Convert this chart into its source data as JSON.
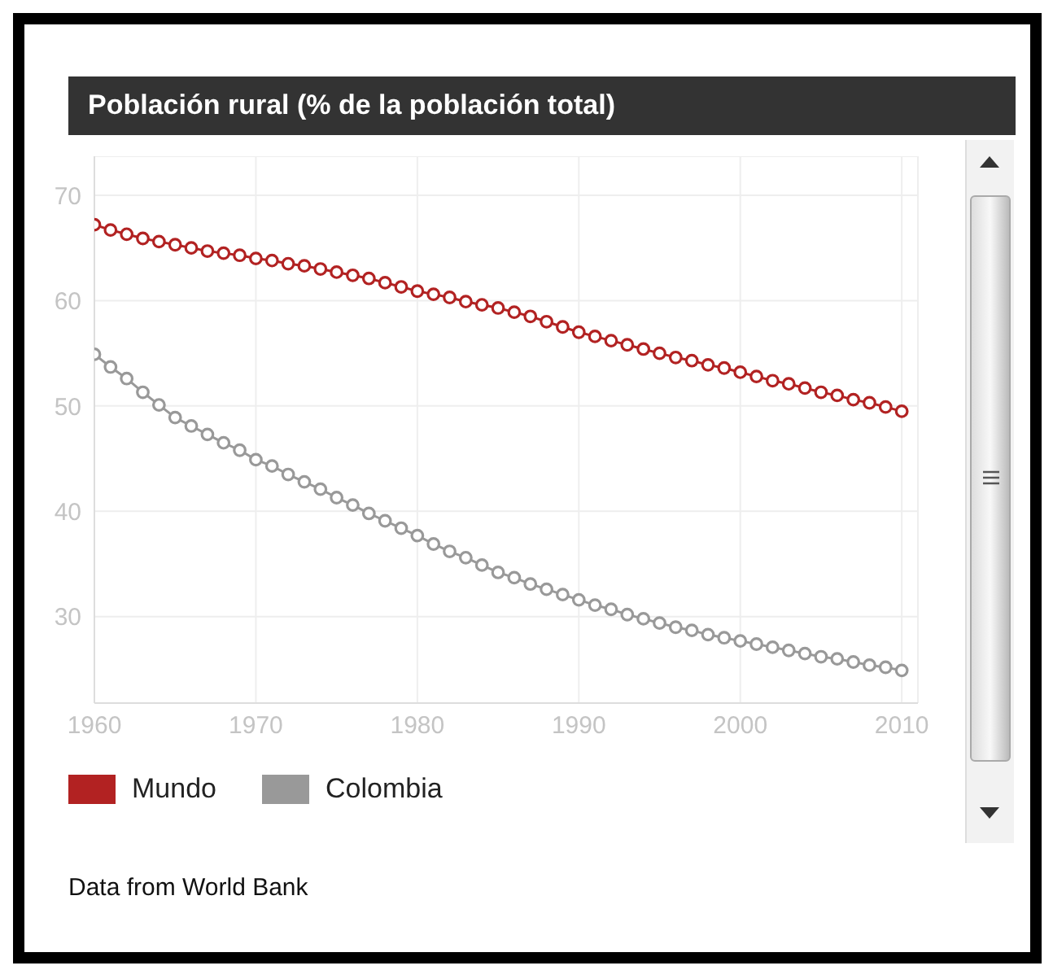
{
  "chart_data": {
    "type": "line",
    "title": "Población rural (% de la población total)",
    "x": [
      1960,
      1961,
      1962,
      1963,
      1964,
      1965,
      1966,
      1967,
      1968,
      1969,
      1970,
      1971,
      1972,
      1973,
      1974,
      1975,
      1976,
      1977,
      1978,
      1979,
      1980,
      1981,
      1982,
      1983,
      1984,
      1985,
      1986,
      1987,
      1988,
      1989,
      1990,
      1991,
      1992,
      1993,
      1994,
      1995,
      1996,
      1997,
      1998,
      1999,
      2000,
      2001,
      2002,
      2003,
      2004,
      2005,
      2006,
      2007,
      2008,
      2009,
      2010
    ],
    "series": [
      {
        "name": "Mundo",
        "color": "#b22222",
        "values": [
          67.2,
          66.7,
          66.3,
          65.9,
          65.6,
          65.3,
          65.0,
          64.7,
          64.5,
          64.3,
          64.0,
          63.8,
          63.5,
          63.3,
          63.0,
          62.7,
          62.4,
          62.1,
          61.7,
          61.3,
          60.9,
          60.6,
          60.3,
          59.9,
          59.6,
          59.3,
          58.9,
          58.5,
          58.0,
          57.5,
          57.0,
          56.6,
          56.2,
          55.8,
          55.4,
          55.0,
          54.6,
          54.3,
          53.9,
          53.6,
          53.2,
          52.8,
          52.4,
          52.1,
          51.7,
          51.3,
          51.0,
          50.6,
          50.3,
          49.9,
          49.5
        ]
      },
      {
        "name": "Colombia",
        "color": "#999999",
        "values": [
          54.9,
          53.7,
          52.6,
          51.3,
          50.1,
          48.9,
          48.1,
          47.3,
          46.5,
          45.8,
          44.9,
          44.3,
          43.5,
          42.8,
          42.1,
          41.3,
          40.6,
          39.8,
          39.1,
          38.4,
          37.7,
          36.9,
          36.2,
          35.6,
          34.9,
          34.2,
          33.7,
          33.1,
          32.6,
          32.1,
          31.6,
          31.1,
          30.7,
          30.2,
          29.8,
          29.4,
          29.0,
          28.7,
          28.3,
          28.0,
          27.7,
          27.4,
          27.1,
          26.8,
          26.5,
          26.2,
          26.0,
          25.7,
          25.4,
          25.2,
          24.9
        ]
      }
    ],
    "xlim": [
      1960,
      2011
    ],
    "xticks": [
      1960,
      1970,
      1980,
      1990,
      2000,
      2010
    ],
    "ylim": [
      21.8,
      73.7
    ],
    "yticks": [
      30,
      40,
      50,
      60,
      70
    ],
    "grid": true,
    "legend": "bottom left",
    "marker": "circle",
    "annotations": [
      "Data from World Bank"
    ]
  }
}
